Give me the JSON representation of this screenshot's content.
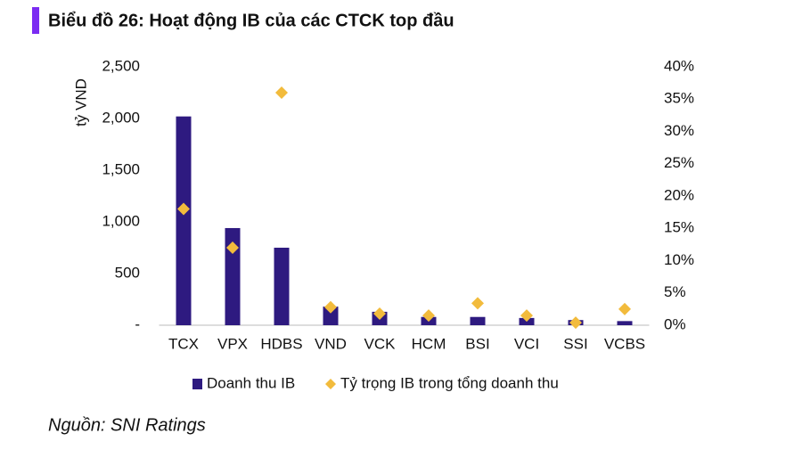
{
  "chart_data": {
    "type": "bar",
    "title": "Biểu đồ 26: Hoạt động IB của các CTCK top đầu",
    "y_label": "tỷ VND",
    "categories": [
      "TCX",
      "VPX",
      "HDBS",
      "VND",
      "VCK",
      "HCM",
      "BSI",
      "VCI",
      "SSI",
      "VCBS"
    ],
    "series": [
      {
        "name": "Doanh thu IB",
        "color": "#2e1a80",
        "marker": "bar",
        "values": [
          2020,
          940,
          750,
          180,
          130,
          80,
          80,
          70,
          50,
          40
        ]
      },
      {
        "name": "Tỷ trọng IB trong tổng doanh thu",
        "color": "#f2bb3c",
        "marker": "diamond",
        "axis": "y2",
        "values": [
          18,
          12,
          36,
          2.8,
          1.8,
          1.5,
          3.4,
          1.5,
          0.4,
          2.5
        ]
      }
    ],
    "ylim": [
      0,
      2500
    ],
    "yticks": [
      {
        "value": 0,
        "label": "-"
      },
      500,
      {
        "value": 1000,
        "label": "1,000"
      },
      {
        "value": 1500,
        "label": "1,500"
      },
      {
        "value": 2000,
        "label": "2,000"
      },
      {
        "value": 2500,
        "label": "2,500"
      }
    ],
    "y2lim": [
      0,
      40
    ],
    "y2ticks": [
      {
        "value": 0,
        "label": "0%"
      },
      {
        "value": 5,
        "label": "5%"
      },
      {
        "value": 10,
        "label": "10%"
      },
      {
        "value": 15,
        "label": "15%"
      },
      {
        "value": 20,
        "label": "20%"
      },
      {
        "value": 25,
        "label": "25%"
      },
      {
        "value": 30,
        "label": "30%"
      },
      {
        "value": 35,
        "label": "35%"
      },
      {
        "value": 40,
        "label": "40%"
      }
    ],
    "grid": false,
    "source": "Nguồn: SNI Ratings"
  }
}
